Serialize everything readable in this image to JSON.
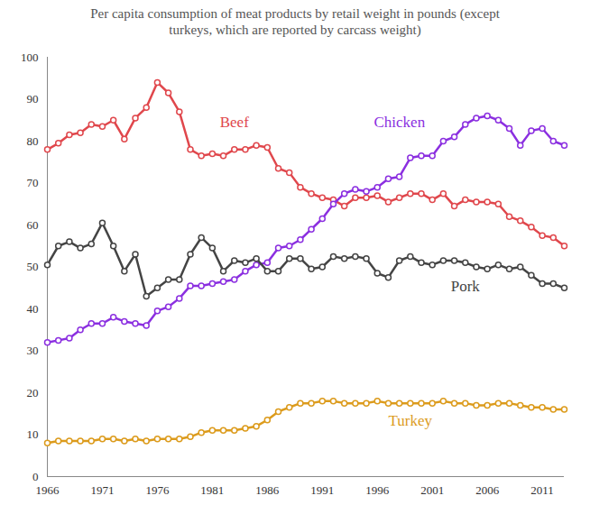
{
  "chart_data": {
    "type": "line",
    "title": "Per capita consumption of meat products by retail weight in pounds (except turkeys, which are reported by carcass weight)",
    "x": [
      1966,
      1967,
      1968,
      1969,
      1970,
      1971,
      1972,
      1973,
      1974,
      1975,
      1976,
      1977,
      1978,
      1979,
      1980,
      1981,
      1982,
      1983,
      1984,
      1985,
      1986,
      1987,
      1988,
      1989,
      1990,
      1991,
      1992,
      1993,
      1994,
      1995,
      1996,
      1997,
      1998,
      1999,
      2000,
      2001,
      2002,
      2003,
      2004,
      2005,
      2006,
      2007,
      2008,
      2009,
      2010,
      2011,
      2012,
      2013
    ],
    "series": [
      {
        "name": "Beef",
        "color": "#e0474c",
        "values": [
          78,
          79.5,
          81.5,
          82,
          84,
          83.5,
          85,
          80.5,
          85.5,
          88,
          94,
          91.5,
          87,
          78,
          76.5,
          77,
          76.5,
          78,
          78,
          79,
          78.5,
          73.5,
          72.5,
          69,
          67.5,
          66.5,
          66,
          64.5,
          66.5,
          66.5,
          67,
          65.5,
          66.5,
          67.5,
          67.5,
          66,
          67.5,
          64.5,
          66,
          65.5,
          65.5,
          65,
          62,
          61,
          59.5,
          57.5,
          57,
          55
        ]
      },
      {
        "name": "Chicken",
        "color": "#8b2fe0",
        "values": [
          32,
          32.5,
          33,
          35,
          36.5,
          36.5,
          38,
          37,
          36.5,
          36,
          39.5,
          40.5,
          42.5,
          45.5,
          45.5,
          46,
          46.5,
          47,
          49,
          50.5,
          51,
          54.5,
          55,
          56.5,
          59,
          61.5,
          65,
          67.5,
          68.5,
          68,
          69,
          71,
          71.5,
          76,
          76.5,
          76.5,
          80,
          81,
          84,
          85.5,
          86,
          85,
          83,
          79,
          82.5,
          83,
          80,
          79
        ]
      },
      {
        "name": "Pork",
        "color": "#444444",
        "values": [
          50.5,
          55,
          56,
          54.5,
          55.5,
          60.5,
          55,
          49,
          53,
          43,
          45,
          47,
          47,
          53,
          57,
          54.5,
          49,
          51.5,
          51,
          52,
          49,
          49,
          52,
          52,
          49.5,
          50,
          52.5,
          52,
          52.5,
          52,
          48.5,
          47.5,
          51.5,
          52.5,
          51,
          50.5,
          51.5,
          51.5,
          51,
          50,
          49.5,
          50.5,
          49.5,
          50,
          48,
          46,
          46,
          45
        ]
      },
      {
        "name": "Turkey",
        "color": "#dc9b1c",
        "values": [
          8,
          8.5,
          8.5,
          8.5,
          8.5,
          9,
          9,
          8.5,
          9,
          8.5,
          9,
          9,
          9,
          9.5,
          10.5,
          11,
          11,
          11,
          11.5,
          12,
          13.5,
          15.5,
          16.5,
          17.5,
          17.5,
          18,
          18,
          17.5,
          17.5,
          17.5,
          18,
          17.5,
          17.5,
          17.5,
          17.5,
          17.5,
          18,
          17.5,
          17.5,
          17,
          17,
          17.5,
          17.5,
          17,
          16.5,
          16.5,
          16,
          16
        ]
      }
    ],
    "xlim": [
      1966,
      2013
    ],
    "xticks": [
      1966,
      1971,
      1976,
      1981,
      1986,
      1991,
      1996,
      2001,
      2006,
      2011
    ],
    "ylim": [
      0,
      100
    ],
    "yticks": [
      0,
      10,
      20,
      30,
      40,
      50,
      60,
      70,
      80,
      90,
      100
    ],
    "grid": false,
    "marker": "circle"
  }
}
